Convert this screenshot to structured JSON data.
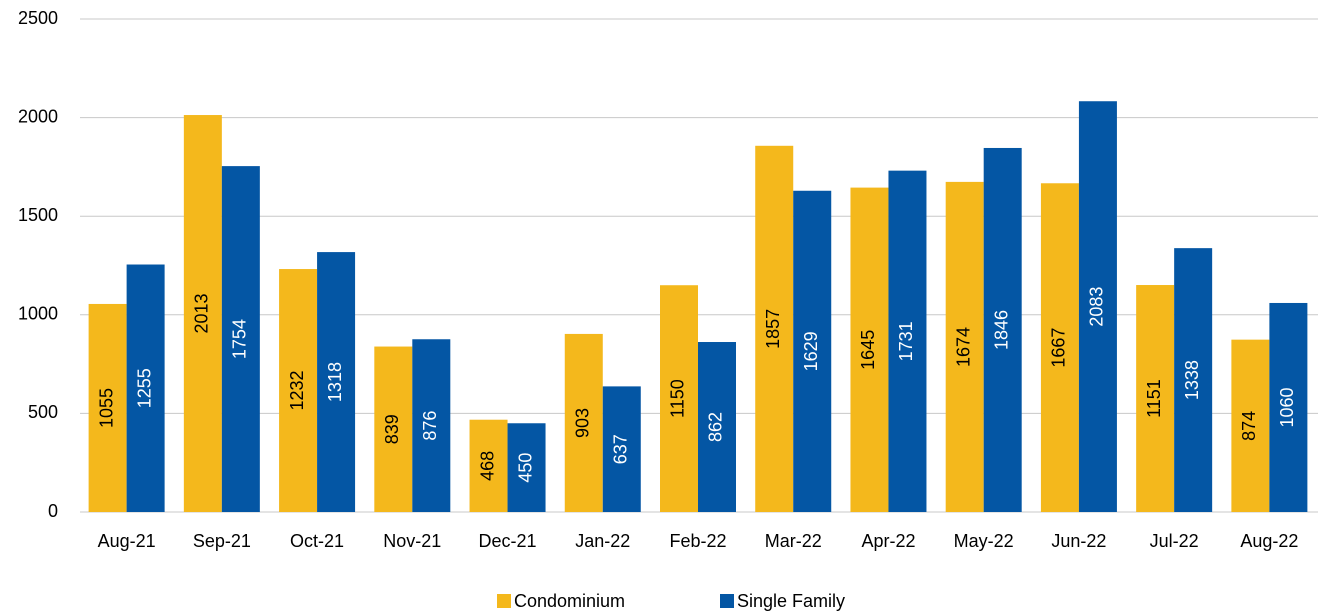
{
  "chart_data": {
    "type": "bar",
    "categories": [
      "Aug-21",
      "Sep-21",
      "Oct-21",
      "Nov-21",
      "Dec-21",
      "Jan-22",
      "Feb-22",
      "Mar-22",
      "Apr-22",
      "May-22",
      "Jun-22",
      "Jul-22",
      "Aug-22"
    ],
    "series": [
      {
        "name": "Condominium",
        "color": "#f4b81c",
        "values": [
          1055,
          2013,
          1232,
          839,
          468,
          903,
          1150,
          1857,
          1645,
          1674,
          1667,
          1151,
          874
        ]
      },
      {
        "name": "Single Family",
        "color": "#0456a4",
        "values": [
          1255,
          1754,
          1318,
          876,
          450,
          637,
          862,
          1629,
          1731,
          1846,
          2083,
          1338,
          1060
        ]
      }
    ],
    "ylim": [
      0,
      2500
    ],
    "yticks": [
      0,
      500,
      1000,
      1500,
      2000,
      2500
    ],
    "grid": true,
    "legend": "bottom"
  }
}
